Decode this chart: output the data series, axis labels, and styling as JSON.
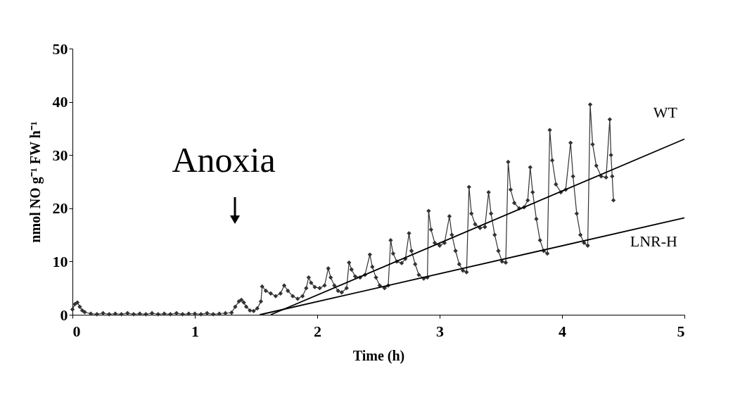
{
  "chart_data": {
    "type": "line",
    "xlabel": "Time (h)",
    "ylabel": "nmol NO g⁻¹ FW h⁻¹",
    "xlim": [
      0,
      5
    ],
    "xticks": [
      0,
      1,
      2,
      3,
      4,
      5
    ],
    "ylim": [
      0,
      50
    ],
    "yticks": [
      0,
      10,
      20,
      30,
      40,
      50
    ],
    "grid": false,
    "annotations": [
      "Anoxia"
    ],
    "series": [
      {
        "type": "line",
        "marker": "diamond",
        "color": "#333333",
        "x": [
          0,
          0.02,
          0.04,
          0.06,
          0.08,
          0.1,
          0.15,
          0.2,
          0.25,
          0.3,
          0.35,
          0.4,
          0.45,
          0.5,
          0.55,
          0.6,
          0.65,
          0.7,
          0.75,
          0.8,
          0.85,
          0.9,
          0.95,
          1.0,
          1.05,
          1.1,
          1.15,
          1.2,
          1.25,
          1.3,
          1.33,
          1.36,
          1.38,
          1.4,
          1.42,
          1.45,
          1.48,
          1.51,
          1.54,
          1.55,
          1.58,
          1.62,
          1.66,
          1.7,
          1.73,
          1.76,
          1.8,
          1.84,
          1.88,
          1.91,
          1.93,
          1.95,
          1.98,
          2.02,
          2.06,
          2.09,
          2.11,
          2.14,
          2.17,
          2.2,
          2.24,
          2.26,
          2.28,
          2.31,
          2.35,
          2.39,
          2.43,
          2.45,
          2.48,
          2.51,
          2.55,
          2.58,
          2.6,
          2.62,
          2.65,
          2.69,
          2.72,
          2.75,
          2.77,
          2.8,
          2.83,
          2.87,
          2.9,
          2.91,
          2.93,
          2.96,
          3.0,
          3.04,
          3.08,
          3.1,
          3.13,
          3.16,
          3.19,
          3.22,
          3.24,
          3.26,
          3.29,
          3.33,
          3.37,
          3.4,
          3.42,
          3.45,
          3.48,
          3.51,
          3.54,
          3.56,
          3.58,
          3.61,
          3.65,
          3.69,
          3.72,
          3.74,
          3.76,
          3.79,
          3.82,
          3.85,
          3.88,
          3.9,
          3.92,
          3.95,
          3.99,
          4.03,
          4.07,
          4.09,
          4.12,
          4.15,
          4.18,
          4.21,
          4.23,
          4.25,
          4.28,
          4.32,
          4.36,
          4.39,
          4.4,
          4.41,
          4.42
        ],
        "values": [
          1.0,
          2.0,
          2.3,
          1.5,
          0.8,
          0.5,
          0.2,
          0.1,
          0.3,
          0.1,
          0.2,
          0.1,
          0.3,
          0.1,
          0.2,
          0.1,
          0.3,
          0.1,
          0.2,
          0.1,
          0.3,
          0.1,
          0.2,
          0.2,
          0.1,
          0.3,
          0.1,
          0.2,
          0.3,
          0.4,
          1.5,
          2.5,
          2.8,
          2.3,
          1.5,
          0.8,
          0.7,
          1.2,
          2.5,
          5.3,
          4.5,
          4.0,
          3.5,
          4.0,
          5.5,
          4.5,
          3.5,
          3.0,
          3.5,
          5.0,
          7.0,
          6.0,
          5.2,
          5.0,
          5.5,
          8.7,
          7.0,
          5.5,
          4.5,
          4.2,
          5.0,
          9.8,
          8.5,
          7.2,
          7.0,
          7.5,
          11.3,
          9.0,
          7.0,
          5.5,
          5.0,
          5.5,
          14.0,
          11.5,
          10.0,
          9.7,
          10.5,
          15.3,
          12.0,
          9.5,
          7.5,
          6.8,
          7.0,
          19.5,
          16.0,
          13.5,
          13.0,
          13.5,
          18.5,
          15.0,
          12.0,
          9.5,
          8.3,
          8.0,
          24.0,
          19.0,
          17.0,
          16.3,
          16.5,
          23.0,
          19.0,
          15.0,
          12.0,
          10.0,
          9.8,
          28.7,
          23.5,
          21.0,
          20.0,
          20.2,
          21.5,
          27.7,
          23.0,
          18.0,
          14.0,
          12.0,
          11.5,
          34.7,
          29.0,
          24.5,
          23.0,
          23.5,
          32.3,
          26.0,
          19.0,
          15.0,
          13.5,
          13.0,
          39.5,
          32.0,
          28.0,
          26.0,
          25.8,
          36.7,
          30.0,
          26.0,
          21.5
        ]
      },
      {
        "type": "line",
        "name": "WT",
        "color": "#000000",
        "marker": "none",
        "x": [
          1.62,
          5
        ],
        "values": [
          0,
          33
        ]
      },
      {
        "type": "line",
        "name": "LNR-H",
        "color": "#000000",
        "marker": "none",
        "x": [
          1.53,
          5
        ],
        "values": [
          0,
          18.2
        ]
      }
    ]
  }
}
